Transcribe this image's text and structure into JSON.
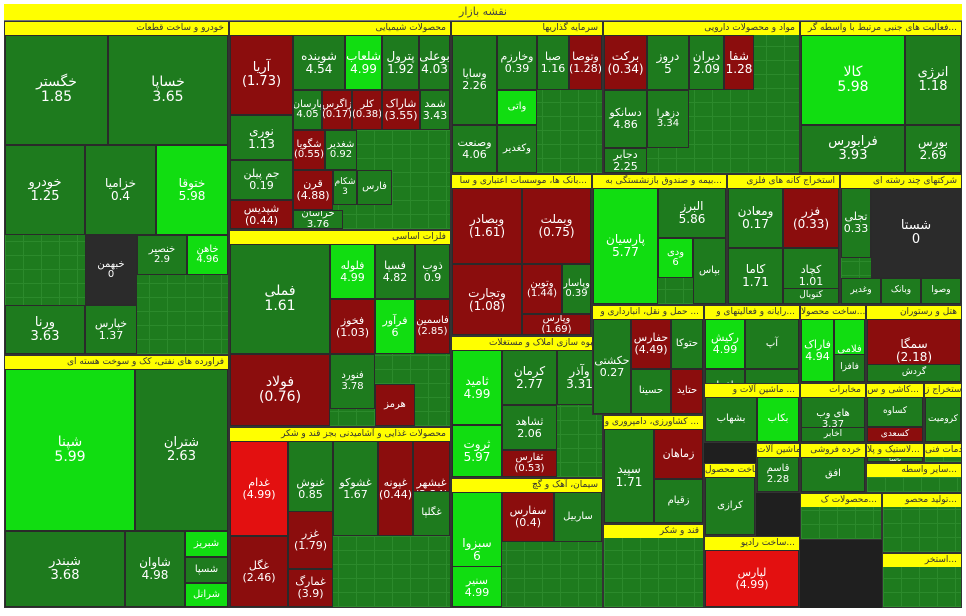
{
  "title": "نقشه بازار",
  "colors": {
    "dark_green": "#1e7b1e",
    "mid_green": "#2c9e2c",
    "bright_green": "#11dd11",
    "dark_red": "#8b0d0d",
    "bright_red": "#e31010",
    "neutral": "#2b2b2b",
    "header": "#ffff00"
  },
  "chart_data": {
    "type": "treemap",
    "title": "نقشه بازار",
    "sectors": [
      {
        "name": "خودرو و ساخت قطعات",
        "tiles": [
          {
            "symbol": "خگستر",
            "change": "1.85",
            "color": "dark_green"
          },
          {
            "symbol": "خساپا",
            "change": "3.65",
            "color": "dark_green"
          },
          {
            "symbol": "خودرو",
            "change": "1.25",
            "color": "dark_green"
          },
          {
            "symbol": "خزامیا",
            "change": "0.4",
            "color": "dark_green"
          },
          {
            "symbol": "ختوقا",
            "change": "5.98",
            "color": "bright_green"
          },
          {
            "symbol": "خبهمن",
            "change": "0",
            "color": "neutral"
          },
          {
            "symbol": "خنصیر",
            "change": "2.9",
            "color": "dark_green"
          },
          {
            "symbol": "خاهن",
            "change": "4.96",
            "color": "bright_green"
          },
          {
            "symbol": "ورنا",
            "change": "3.63",
            "color": "dark_green"
          },
          {
            "symbol": "خپارس",
            "change": "1.37",
            "color": "dark_green"
          }
        ]
      },
      {
        "name": "محصولات شیمیایی",
        "tiles": [
          {
            "symbol": "آریا",
            "change": "(1.73)",
            "color": "dark_red"
          },
          {
            "symbol": "شوینده",
            "change": "4.54",
            "color": "dark_green"
          },
          {
            "symbol": "شلعاب",
            "change": "4.99",
            "color": "bright_green"
          },
          {
            "symbol": "پترول",
            "change": "1.92",
            "color": "dark_green"
          },
          {
            "symbol": "بوعلی",
            "change": "4.03",
            "color": "dark_green"
          },
          {
            "symbol": "پارسان",
            "change": "4.05",
            "color": "dark_green"
          },
          {
            "symbol": "زاگرس",
            "change": "(0.17)",
            "color": "dark_red"
          },
          {
            "symbol": "کلر",
            "change": "(0.38)",
            "color": "dark_red"
          },
          {
            "symbol": "شاراک",
            "change": "(3.55)",
            "color": "dark_red"
          },
          {
            "symbol": "شمد",
            "change": "3.43",
            "color": "dark_green"
          },
          {
            "symbol": "نوری",
            "change": "1.13",
            "color": "dark_green"
          },
          {
            "symbol": "شگویا",
            "change": "(0.55)",
            "color": "dark_red"
          },
          {
            "symbol": "شغدیر",
            "change": "0.92",
            "color": "dark_green"
          },
          {
            "symbol": "جم پیلن",
            "change": "0.19",
            "color": "dark_green"
          },
          {
            "symbol": "قرن",
            "change": "(4.88)",
            "color": "dark_red"
          },
          {
            "symbol": "شکام",
            "change": "3",
            "color": "dark_green"
          },
          {
            "symbol": "شپدیس",
            "change": "(0.44)",
            "color": "dark_red"
          },
          {
            "symbol": "خراسان",
            "change": "3.76",
            "color": "dark_green"
          },
          {
            "symbol": "فارس",
            "change": "",
            "color": "dark_green"
          }
        ]
      },
      {
        "name": "سرمایه گذاریها",
        "tiles": [
          {
            "symbol": "وسایا",
            "change": "2.26",
            "color": "dark_green"
          },
          {
            "symbol": "وخارزم",
            "change": "0.39",
            "color": "dark_green"
          },
          {
            "symbol": "صبا",
            "change": "1.16",
            "color": "dark_green"
          },
          {
            "symbol": "وتوصا",
            "change": "(1.28)",
            "color": "dark_red"
          },
          {
            "symbol": "وصنعت",
            "change": "4.06",
            "color": "dark_green"
          },
          {
            "symbol": "وکغدیر",
            "change": "",
            "color": "dark_green"
          },
          {
            "symbol": "واتی",
            "change": "",
            "color": "bright_green"
          }
        ]
      },
      {
        "name": "مواد و محصولات دارویی",
        "tiles": [
          {
            "symbol": "برکت",
            "change": "(0.34)",
            "color": "dark_red"
          },
          {
            "symbol": "دروز",
            "change": "5",
            "color": "dark_green"
          },
          {
            "symbol": "دیران",
            "change": "2.09",
            "color": "dark_green"
          },
          {
            "symbol": "شفا",
            "change": "(1.28)",
            "color": "dark_red"
          },
          {
            "symbol": "دسانکو",
            "change": "4.86",
            "color": "dark_green"
          },
          {
            "symbol": "دزهرا",
            "change": "3.34",
            "color": "dark_green"
          },
          {
            "symbol": "دجابر",
            "change": "2.25",
            "color": "dark_green"
          }
        ]
      },
      {
        "name": "فعالیت های جنبی مرتبط با واسطه گر...",
        "tiles": [
          {
            "symbol": "کالا",
            "change": "5.98",
            "color": "bright_green"
          },
          {
            "symbol": "انرژی",
            "change": "1.18",
            "color": "dark_green"
          },
          {
            "symbol": "فرابورس",
            "change": "3.93",
            "color": "dark_green"
          },
          {
            "symbol": "بورس",
            "change": "2.69",
            "color": "dark_green"
          }
        ]
      },
      {
        "name": "فلزات اساسی",
        "tiles": [
          {
            "symbol": "فملی",
            "change": "1.61",
            "color": "dark_green"
          },
          {
            "symbol": "فلوله",
            "change": "4.99",
            "color": "bright_green"
          },
          {
            "symbol": "فسپا",
            "change": "4.82",
            "color": "dark_green"
          },
          {
            "symbol": "ذوب",
            "change": "0.9",
            "color": "dark_green"
          },
          {
            "symbol": "فخوز",
            "change": "(1.03)",
            "color": "dark_red"
          },
          {
            "symbol": "فرآور",
            "change": "6",
            "color": "bright_green"
          },
          {
            "symbol": "فاسمین",
            "change": "(2.85)",
            "color": "dark_red"
          },
          {
            "symbol": "فولاد",
            "change": "(0.76)",
            "color": "dark_red"
          },
          {
            "symbol": "فنورد",
            "change": "3.78",
            "color": "dark_green"
          },
          {
            "symbol": "هرمز",
            "change": "",
            "color": "dark_red"
          }
        ]
      },
      {
        "name": "بانک ها، موسسات اعتباری و سا...",
        "tiles": [
          {
            "symbol": "وبصادر",
            "change": "(1.61)",
            "color": "dark_red"
          },
          {
            "symbol": "وبملت",
            "change": "(0.75)",
            "color": "dark_red"
          },
          {
            "symbol": "وتجارت",
            "change": "(1.08)",
            "color": "dark_red"
          },
          {
            "symbol": "وتوین",
            "change": "(1.44)",
            "color": "dark_red"
          },
          {
            "symbol": "وپاسار",
            "change": "0.39",
            "color": "dark_green"
          },
          {
            "symbol": "وپارس",
            "change": "(1.69)",
            "color": "dark_red"
          }
        ]
      },
      {
        "name": "بیمه و صندوق بازنشستگی به...",
        "tiles": [
          {
            "symbol": "پارسیان",
            "change": "5.77",
            "color": "bright_green"
          },
          {
            "symbol": "البرز",
            "change": "5.86",
            "color": "dark_green"
          },
          {
            "symbol": "ودی",
            "change": "6",
            "color": "bright_green"
          },
          {
            "symbol": "بپاس",
            "change": "",
            "color": "dark_green"
          }
        ]
      },
      {
        "name": "استخراج کانه های فلزی",
        "tiles": [
          {
            "symbol": "ومعادن",
            "change": "0.17",
            "color": "dark_green"
          },
          {
            "symbol": "فزر",
            "change": "(0.33)",
            "color": "dark_red"
          },
          {
            "symbol": "کاما",
            "change": "1.71",
            "color": "dark_green"
          },
          {
            "symbol": "کچاد",
            "change": "1.01",
            "color": "dark_green"
          },
          {
            "symbol": "کنوبال",
            "change": "",
            "color": "dark_green"
          }
        ]
      },
      {
        "name": "شرکتهای چند رشته ای",
        "tiles": [
          {
            "symbol": "تجلی",
            "change": "0.33",
            "color": "dark_green"
          },
          {
            "symbol": "شستا",
            "change": "0",
            "color": "neutral"
          },
          {
            "symbol": "وغدیر",
            "change": "",
            "color": "dark_green"
          },
          {
            "symbol": "وبانک",
            "change": "",
            "color": "dark_green"
          },
          {
            "symbol": "وصوا",
            "change": "",
            "color": "dark_green"
          }
        ]
      },
      {
        "name": "قند و شکر",
        "tiles": []
      },
      {
        "name": "فراورده های نفتی، کک و سوخت هسته ای",
        "tiles": [
          {
            "symbol": "شپنا",
            "change": "5.99",
            "color": "bright_green"
          },
          {
            "symbol": "شتران",
            "change": "2.63",
            "color": "dark_green"
          },
          {
            "symbol": "شبندر",
            "change": "3.68",
            "color": "dark_green"
          },
          {
            "symbol": "شاوان",
            "change": "4.98",
            "color": "dark_green"
          },
          {
            "symbol": "شبریز",
            "change": "",
            "color": "bright_green"
          },
          {
            "symbol": "شسپا",
            "change": "",
            "color": "dark_green"
          },
          {
            "symbol": "شرانل",
            "change": "",
            "color": "bright_green"
          }
        ]
      },
      {
        "name": "محصولات غذایی و آشامیدنی بجز قند و شکر",
        "tiles": [
          {
            "symbol": "غدام",
            "change": "(4.99)",
            "color": "bright_red"
          },
          {
            "symbol": "غنوش",
            "change": "0.85",
            "color": "dark_green"
          },
          {
            "symbol": "غشوکو",
            "change": "1.67",
            "color": "dark_green"
          },
          {
            "symbol": "غپونه",
            "change": "(0.44)",
            "color": "dark_red"
          },
          {
            "symbol": "غبشهر",
            "change": "(2.24)",
            "color": "dark_red"
          },
          {
            "symbol": "غزر",
            "change": "(1.79)",
            "color": "dark_red"
          },
          {
            "symbol": "غگل",
            "change": "(2.46)",
            "color": "dark_red"
          },
          {
            "symbol": "غمارگ",
            "change": "(3.9)",
            "color": "dark_red"
          },
          {
            "symbol": "غگلپا",
            "change": "",
            "color": "dark_green"
          }
        ]
      },
      {
        "name": "انبوه سازی املاک و مستغلات",
        "tiles": [
          {
            "symbol": "ثامید",
            "change": "4.99",
            "color": "bright_green"
          },
          {
            "symbol": "کرمان",
            "change": "2.77",
            "color": "dark_green"
          },
          {
            "symbol": "وآذر",
            "change": "3.31",
            "color": "dark_green"
          },
          {
            "symbol": "ثشاهد",
            "change": "2.06",
            "color": "dark_green"
          },
          {
            "symbol": "ثروت",
            "change": "5.97",
            "color": "bright_green"
          },
          {
            "symbol": "ثفارس",
            "change": "(0.53)",
            "color": "dark_red"
          }
        ]
      },
      {
        "name": "سیمان، آهک و گچ",
        "tiles": [
          {
            "symbol": "سبزوا",
            "change": "6",
            "color": "bright_green"
          },
          {
            "symbol": "سفارس",
            "change": "(0.4)",
            "color": "dark_red"
          },
          {
            "symbol": "ساربیل",
            "change": "",
            "color": "dark_green"
          },
          {
            "symbol": "سنیر",
            "change": "4.99",
            "color": "bright_green"
          }
        ]
      },
      {
        "name": "حمل و نقل، انبارداری و ...",
        "tiles": [
          {
            "symbol": "حکشتی",
            "change": "0.27",
            "color": "dark_green"
          },
          {
            "symbol": "حفارس",
            "change": "(4.49)",
            "color": "dark_red"
          },
          {
            "symbol": "حتوکا",
            "change": "",
            "color": "dark_green"
          },
          {
            "symbol": "حسینا",
            "change": "",
            "color": "dark_green"
          },
          {
            "symbol": "حتاید",
            "change": "",
            "color": "dark_red"
          }
        ]
      },
      {
        "name": "رایانه و فعالیتهای و...",
        "tiles": [
          {
            "symbol": "رکیش",
            "change": "4.99",
            "color": "bright_green"
          },
          {
            "symbol": "آپ",
            "change": "",
            "color": "dark_green"
          },
          {
            "symbol": "افرا",
            "change": "4.86",
            "color": "dark_green"
          },
          {
            "symbol": "اپرداز",
            "change": "",
            "color": "dark_green"
          }
        ]
      },
      {
        "name": "ساخت محصولا...",
        "tiles": [
          {
            "symbol": "فاراک",
            "change": "4.94",
            "color": "bright_green"
          },
          {
            "symbol": "فلامی",
            "change": "",
            "color": "bright_green"
          },
          {
            "symbol": "فافزا",
            "change": "",
            "color": "dark_green"
          }
        ]
      },
      {
        "name": "هتل و رستوران",
        "tiles": [
          {
            "symbol": "سمگا",
            "change": "(2.18)",
            "color": "dark_red"
          },
          {
            "symbol": "گردش",
            "change": "",
            "color": "dark_green"
          }
        ]
      },
      {
        "name": "کشاورزی، دامپروری و ...",
        "tiles": [
          {
            "symbol": "سپید",
            "change": "1.71",
            "color": "dark_green"
          },
          {
            "symbol": "زماهان",
            "change": "",
            "color": "dark_red"
          },
          {
            "symbol": "زقیام",
            "change": "",
            "color": "dark_green"
          }
        ]
      },
      {
        "name": "ماشین آلات و ...",
        "tiles": [
          {
            "symbol": "بشهاب",
            "change": "",
            "color": "dark_green"
          },
          {
            "symbol": "بکاب",
            "change": "",
            "color": "bright_green"
          }
        ]
      },
      {
        "name": "مخابرات",
        "tiles": [
          {
            "symbol": "های وب",
            "change": "3.37",
            "color": "dark_green"
          },
          {
            "symbol": "اخابر",
            "change": "",
            "color": "dark_green"
          }
        ]
      },
      {
        "name": "کاشی و س...",
        "tiles": [
          {
            "symbol": "کساوه",
            "change": "",
            "color": "dark_green"
          },
          {
            "symbol": "کسعدی",
            "change": "",
            "color": "dark_red"
          }
        ]
      },
      {
        "name": "استخراج ز...",
        "tiles": [
          {
            "symbol": "کرومیت",
            "change": "",
            "color": "dark_green"
          }
        ]
      },
      {
        "name": "خدمات فنی",
        "tiles": []
      },
      {
        "name": "ساخت رادیو...",
        "tiles": [
          {
            "symbol": "لپارس",
            "change": "(4.99)",
            "color": "bright_red"
          }
        ]
      },
      {
        "name": "لاستیک و پلا...",
        "tiles": [
          {
            "symbol": "پاسا",
            "change": "",
            "color": "dark_green"
          }
        ]
      },
      {
        "name": "ساخت محصول...",
        "tiles": [
          {
            "symbol": "کرازی",
            "change": "",
            "color": "dark_green"
          }
        ]
      },
      {
        "name": "ماشین آلات",
        "tiles": [
          {
            "symbol": "قاسم",
            "change": "2.28",
            "color": "dark_green"
          }
        ]
      },
      {
        "name": "خرده فروشی",
        "tiles": [
          {
            "symbol": "افق",
            "change": "",
            "color": "dark_green"
          }
        ]
      },
      {
        "name": "سایر واسطه...",
        "tiles": []
      },
      {
        "name": "محصولات ک...",
        "tiles": []
      },
      {
        "name": "تولید محصو...",
        "tiles": []
      },
      {
        "name": "استخر...",
        "tiles": []
      }
    ]
  }
}
